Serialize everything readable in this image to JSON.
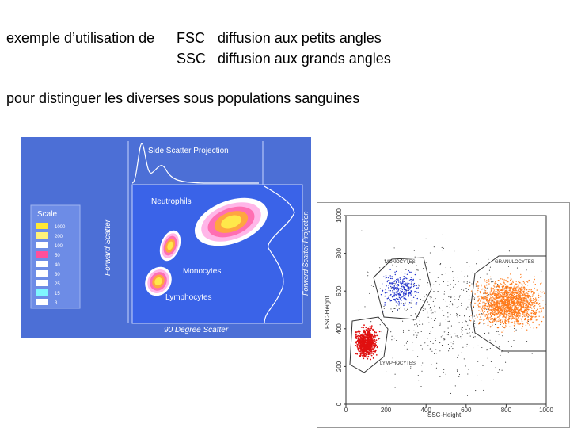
{
  "text": {
    "intro": "exemple d’utilisation de",
    "fsc": "FSC",
    "fsc_description": "diffusion aux petits angles",
    "ssc": "SSC",
    "ssc_description": "diffusion aux grands angles",
    "purpose": "pour distinguer les diverses sous populations sanguines"
  },
  "figure_left": {
    "scale_title": "Scale",
    "scale_labels": [
      "1000",
      "200",
      "100",
      "50",
      "40",
      "30",
      "25",
      "15",
      "3"
    ],
    "top_projection": "Side Scatter Projection",
    "right_projection": "Forward Scatter Projection",
    "x_label": "90 Degree Scatter",
    "y_label": "Forward Scatter",
    "populations": [
      "Neutrophils",
      "Monocytes",
      "Lymphocytes"
    ]
  },
  "figure_right": {
    "x_label": "SSC-Height",
    "y_label": "FSC-Height",
    "x_ticks": [
      "0",
      "200",
      "400",
      "600",
      "800",
      "1000"
    ],
    "y_ticks": [
      "0",
      "200",
      "400",
      "600",
      "800",
      "1000"
    ],
    "gates": [
      "MONOCYTES",
      "GRANULOCYTES",
      "LYMPHOCYTES"
    ]
  }
}
